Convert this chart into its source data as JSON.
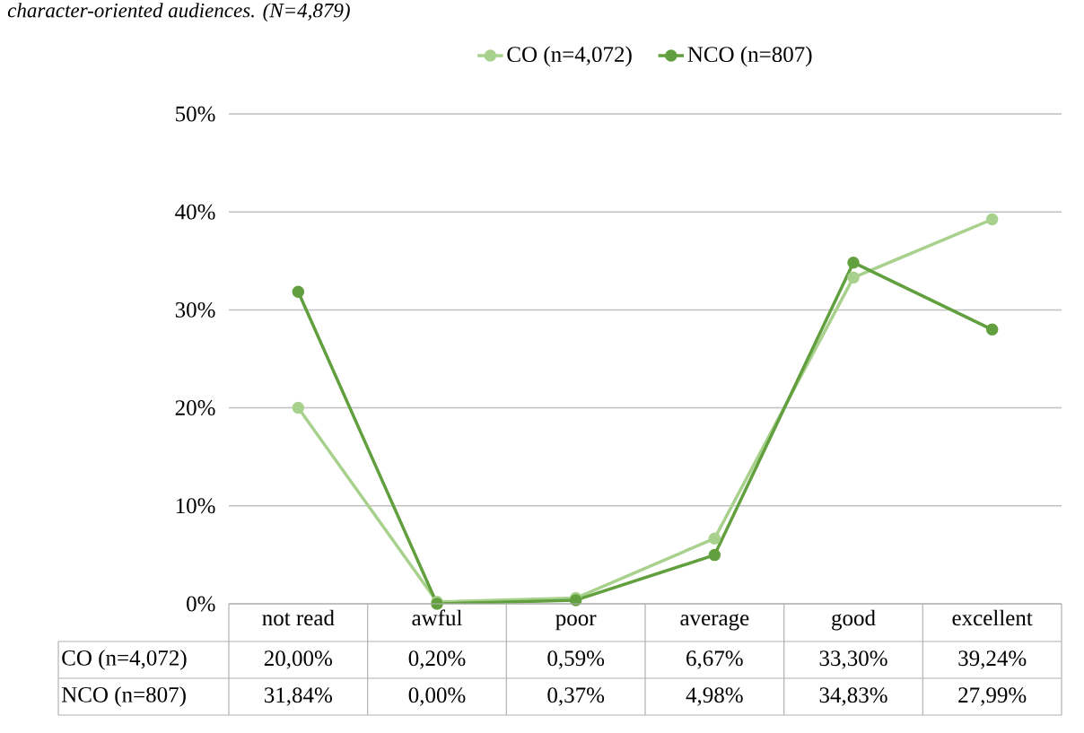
{
  "chart_data": {
    "type": "line",
    "title": "character-oriented audiences. (N=4,879)",
    "categories": [
      "not read",
      "awful",
      "poor",
      "average",
      "good",
      "excellent"
    ],
    "series": [
      {
        "name": "CO (n=4,072)",
        "color": "#a9d18e",
        "values": [
          20.0,
          0.2,
          0.59,
          6.67,
          33.3,
          39.24
        ],
        "value_labels": [
          "20,00%",
          "0,20%",
          "0,59%",
          "6,67%",
          "33,30%",
          "39,24%"
        ]
      },
      {
        "name": "NCO (n=807)",
        "color": "#62a03f",
        "values": [
          31.84,
          0.0,
          0.37,
          4.98,
          34.83,
          27.99
        ],
        "value_labels": [
          "31,84%",
          "0,00%",
          "0,37%",
          "4,98%",
          "34,83%",
          "27,99%"
        ]
      }
    ],
    "ylim": [
      0,
      50
    ],
    "yticks": [
      {
        "value": 0,
        "label": "0%"
      },
      {
        "value": 10,
        "label": "10%"
      },
      {
        "value": 20,
        "label": "20%"
      },
      {
        "value": 30,
        "label": "30%"
      },
      {
        "value": 40,
        "label": "40%"
      },
      {
        "value": 50,
        "label": "50%"
      }
    ],
    "grid": "y",
    "legend": "top",
    "marker": "circle",
    "line_style": "solid"
  }
}
